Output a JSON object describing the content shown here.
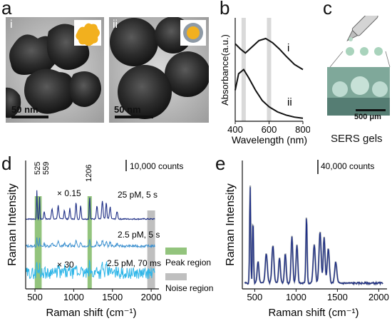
{
  "panels": {
    "a": {
      "letter": "a",
      "sub_i": "i",
      "sub_ii": "ii",
      "scale_i": "50 nm",
      "scale_ii": "50 nm"
    },
    "b": {
      "letter": "b",
      "ylabel": "Absorbance(a.u.)",
      "xlabel": "Wavelength (nm)",
      "curve_i": "i",
      "curve_ii": "ii"
    },
    "c": {
      "letter": "c",
      "scale": "500 μm",
      "caption": "SERS gels"
    },
    "d": {
      "letter": "d",
      "ylabel": "Raman Intensity",
      "xlabel": "Raman shift (cm⁻¹)",
      "scalebar": "10,000 counts",
      "peak_525": "525",
      "peak_559": "559",
      "peak_1206": "1206",
      "mult_top": "× 0.15",
      "mult_bottom": "× 30",
      "cond_top": "25 pM, 5 s",
      "cond_mid": "2.5 pM, 5 s",
      "cond_bottom": "2.5 pM, 70 ms",
      "legend_peak": "Peak region",
      "legend_noise": "Noise region"
    },
    "e": {
      "letter": "e",
      "ylabel": "Raman Intensity",
      "xlabel": "Raman shift (cm⁻¹)",
      "scalebar": "40,000 counts"
    }
  },
  "chart_data": [
    {
      "type": "line",
      "panel": "b",
      "xlabel": "Wavelength (nm)",
      "ylabel": "Absorbance(a.u.)",
      "xlim": [
        400,
        800
      ],
      "xticks": [
        "400",
        "600",
        "800"
      ],
      "highlight_bands_nm": [
        450,
        600
      ],
      "series": [
        {
          "name": "i",
          "x": [
            400,
            430,
            460,
            500,
            540,
            580,
            620,
            660,
            700,
            750,
            800
          ],
          "y": [
            0.75,
            0.7,
            0.66,
            0.72,
            0.78,
            0.8,
            0.76,
            0.7,
            0.63,
            0.55,
            0.5
          ]
        },
        {
          "name": "ii",
          "x": [
            400,
            420,
            450,
            480,
            520,
            560,
            600,
            650,
            700,
            750,
            800
          ],
          "y": [
            0.3,
            0.46,
            0.5,
            0.42,
            0.3,
            0.2,
            0.14,
            0.09,
            0.06,
            0.04,
            0.03
          ]
        }
      ]
    },
    {
      "type": "line",
      "panel": "d",
      "xlabel": "Raman shift (cm⁻¹)",
      "ylabel": "Raman Intensity",
      "xticks": [
        "500",
        "1000",
        "1500",
        "2000"
      ],
      "peak_regions_cm1": [
        525,
        559,
        1206
      ],
      "noise_region_cm1": [
        1950,
        2050
      ],
      "series": [
        {
          "name": "25 pM, 5 s"
        },
        {
          "name": "2.5 pM, 5 s"
        },
        {
          "name": "2.5 pM, 70 ms"
        }
      ]
    },
    {
      "type": "line",
      "panel": "e",
      "xlabel": "Raman shift (cm⁻¹)",
      "ylabel": "Raman Intensity",
      "xticks": [
        "500",
        "1000",
        "1500",
        "2000"
      ]
    }
  ],
  "colors": {
    "dark_blue": "#1f2f86",
    "mid_blue": "#3a8fcf",
    "light_blue": "#2fb6e8",
    "peak_green": "#93c47d",
    "noise_gray": "#bfbfbf",
    "gold": "#f2b01e"
  }
}
